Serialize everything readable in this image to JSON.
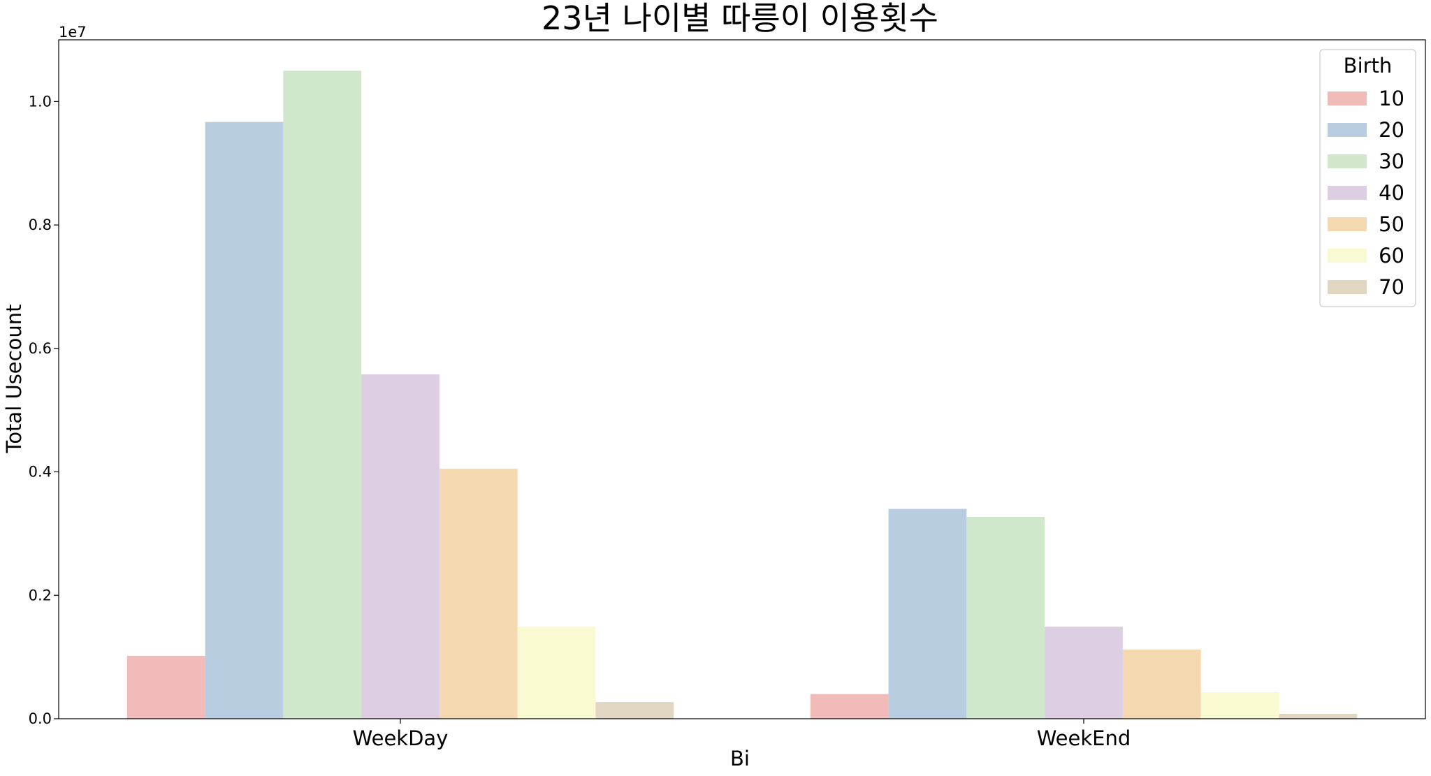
{
  "chart_data": {
    "type": "bar",
    "title": "23년 나이별 따릉이 이용횟수",
    "xlabel": "Bi",
    "ylabel": "Total Usecount",
    "y_offset_label": "1e7",
    "ylim": [
      0,
      1.1
    ],
    "yticks": [
      0.0,
      0.2,
      0.4,
      0.6,
      0.8,
      1.0
    ],
    "ytick_labels": [
      "0.0",
      "0.2",
      "0.4",
      "0.6",
      "0.8",
      "1.0"
    ],
    "categories": [
      "WeekDay",
      "WeekEnd"
    ],
    "legend": {
      "title": "Birth",
      "position": "top-right"
    },
    "series": [
      {
        "name": "10",
        "color": "#f1bbb9",
        "values": [
          0.102,
          0.04
        ]
      },
      {
        "name": "20",
        "color": "#b9cde0",
        "values": [
          0.967,
          0.34
        ]
      },
      {
        "name": "30",
        "color": "#d0e7cb",
        "values": [
          1.05,
          0.327
        ]
      },
      {
        "name": "40",
        "color": "#ddcfe3",
        "values": [
          0.558,
          0.149
        ]
      },
      {
        "name": "50",
        "color": "#f3d8b0",
        "values": [
          0.405,
          0.112
        ]
      },
      {
        "name": "60",
        "color": "#f9f9d2",
        "values": [
          0.149,
          0.043
        ]
      },
      {
        "name": "70",
        "color": "#e1d6c1",
        "values": [
          0.027,
          0.008
        ]
      }
    ],
    "grid": false
  }
}
